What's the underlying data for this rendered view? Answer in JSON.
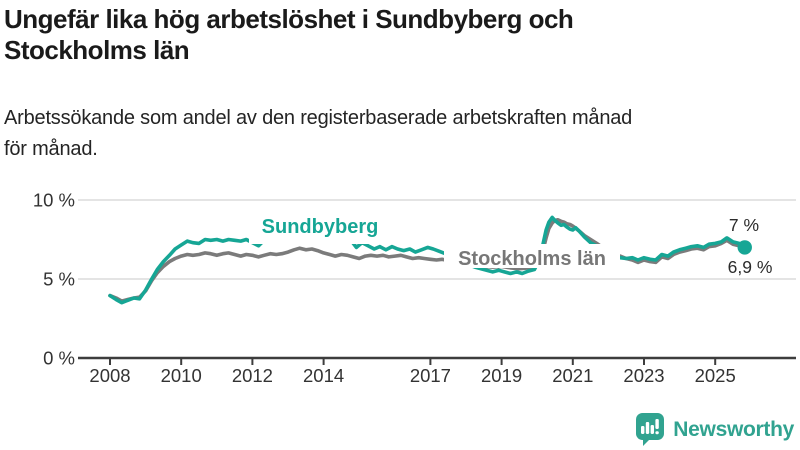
{
  "header": {
    "title_lines": [
      "Ungefär lika hög arbetslöshet i Sundbyberg och",
      "Stockholms län"
    ],
    "subtitle_lines": [
      "Arbetssökande som andel av den registerbaserade arbetskraften månad",
      "för månad."
    ]
  },
  "footer": {
    "brand": "Newsworthy",
    "logo_icon": "bar-chart-speech-bubble-icon"
  },
  "colors": {
    "accent_teal": "#16a695",
    "line_gray": "#7b7b7b",
    "grid": "#dcdcdc",
    "axis": "#3d3d3d",
    "tick_text": "#333333",
    "annotation_text": "#2b2b2b",
    "label_gray": "#777777",
    "brand_teal": "#31a390"
  },
  "chart_data": {
    "type": "line",
    "title": "",
    "xlabel": "",
    "ylabel": "",
    "grid": "horizontal",
    "legend_position": "labels-on-lines",
    "xlim": [
      2007.6,
      2026.3
    ],
    "ylim": [
      0,
      10
    ],
    "y_axis": {
      "ticks": [
        {
          "v": 0,
          "label": "0 %"
        },
        {
          "v": 5,
          "label": "5 %"
        },
        {
          "v": 10,
          "label": "10 %"
        }
      ]
    },
    "x_axis": {
      "ticks": [
        {
          "v": 2008,
          "label": "2008"
        },
        {
          "v": 2010,
          "label": "2010"
        },
        {
          "v": 2012,
          "label": "2012"
        },
        {
          "v": 2014,
          "label": "2014"
        },
        {
          "v": 2017,
          "label": "2017"
        },
        {
          "v": 2019,
          "label": "2019"
        },
        {
          "v": 2021,
          "label": "2021"
        },
        {
          "v": 2023,
          "label": "2023"
        },
        {
          "v": 2025,
          "label": "2025"
        }
      ]
    },
    "series": [
      {
        "name": "Sundbyberg",
        "color": "#16a695",
        "end_dot": true,
        "end_label": "7 %",
        "points": [
          [
            2008.0,
            3.95
          ],
          [
            2008.17,
            3.7
          ],
          [
            2008.33,
            3.5
          ],
          [
            2008.5,
            3.65
          ],
          [
            2008.67,
            3.8
          ],
          [
            2008.83,
            3.75
          ],
          [
            2009.0,
            4.3
          ],
          [
            2009.17,
            5.0
          ],
          [
            2009.33,
            5.6
          ],
          [
            2009.5,
            6.1
          ],
          [
            2009.67,
            6.5
          ],
          [
            2009.83,
            6.9
          ],
          [
            2010.0,
            7.15
          ],
          [
            2010.17,
            7.4
          ],
          [
            2010.33,
            7.3
          ],
          [
            2010.5,
            7.25
          ],
          [
            2010.67,
            7.5
          ],
          [
            2010.83,
            7.45
          ],
          [
            2011.0,
            7.5
          ],
          [
            2011.17,
            7.4
          ],
          [
            2011.33,
            7.5
          ],
          [
            2011.5,
            7.45
          ],
          [
            2011.67,
            7.4
          ],
          [
            2011.83,
            7.5
          ],
          [
            2012.0,
            7.3
          ],
          [
            2012.17,
            7.1
          ],
          [
            2012.33,
            7.45
          ],
          [
            2012.5,
            7.4
          ],
          [
            2012.75,
            7.5
          ],
          [
            2013.0,
            7.45
          ],
          [
            2013.25,
            7.5
          ],
          [
            2013.5,
            7.55
          ],
          [
            2013.75,
            7.5
          ],
          [
            2014.0,
            7.45
          ],
          [
            2014.25,
            7.5
          ],
          [
            2014.5,
            7.4
          ],
          [
            2014.75,
            7.5
          ],
          [
            2014.92,
            7.0
          ],
          [
            2015.08,
            7.3
          ],
          [
            2015.25,
            7.1
          ],
          [
            2015.42,
            6.9
          ],
          [
            2015.58,
            7.05
          ],
          [
            2015.75,
            6.85
          ],
          [
            2015.92,
            7.05
          ],
          [
            2016.08,
            6.9
          ],
          [
            2016.25,
            6.8
          ],
          [
            2016.42,
            6.9
          ],
          [
            2016.58,
            6.7
          ],
          [
            2016.75,
            6.85
          ],
          [
            2016.92,
            7.0
          ],
          [
            2017.08,
            6.9
          ],
          [
            2017.25,
            6.75
          ],
          [
            2017.42,
            6.6
          ],
          [
            2017.58,
            6.45
          ],
          [
            2017.75,
            6.25
          ],
          [
            2017.92,
            6.05
          ],
          [
            2018.08,
            5.9
          ],
          [
            2018.25,
            5.75
          ],
          [
            2018.5,
            5.6
          ],
          [
            2018.75,
            5.45
          ],
          [
            2018.92,
            5.55
          ],
          [
            2019.08,
            5.45
          ],
          [
            2019.25,
            5.35
          ],
          [
            2019.42,
            5.45
          ],
          [
            2019.58,
            5.35
          ],
          [
            2019.75,
            5.5
          ],
          [
            2019.92,
            5.6
          ],
          [
            2020.08,
            6.3
          ],
          [
            2020.17,
            7.3
          ],
          [
            2020.25,
            8.1
          ],
          [
            2020.33,
            8.6
          ],
          [
            2020.42,
            8.9
          ],
          [
            2020.5,
            8.7
          ],
          [
            2020.58,
            8.55
          ],
          [
            2020.67,
            8.4
          ],
          [
            2020.75,
            8.45
          ],
          [
            2020.83,
            8.3
          ],
          [
            2020.92,
            8.15
          ],
          [
            2021.0,
            8.1
          ],
          [
            2021.08,
            8.25
          ],
          [
            2021.17,
            8.05
          ],
          [
            2021.33,
            7.65
          ],
          [
            2021.5,
            7.3
          ],
          [
            2021.67,
            7.1
          ],
          [
            2021.83,
            6.9
          ],
          [
            2022.0,
            6.65
          ],
          [
            2022.17,
            6.45
          ],
          [
            2022.33,
            6.35
          ],
          [
            2022.5,
            6.3
          ],
          [
            2022.67,
            6.35
          ],
          [
            2022.83,
            6.2
          ],
          [
            2023.0,
            6.35
          ],
          [
            2023.17,
            6.25
          ],
          [
            2023.33,
            6.2
          ],
          [
            2023.5,
            6.55
          ],
          [
            2023.67,
            6.45
          ],
          [
            2023.83,
            6.7
          ],
          [
            2024.0,
            6.85
          ],
          [
            2024.17,
            6.95
          ],
          [
            2024.33,
            7.05
          ],
          [
            2024.5,
            7.1
          ],
          [
            2024.67,
            7.0
          ],
          [
            2024.83,
            7.2
          ],
          [
            2025.0,
            7.25
          ],
          [
            2025.17,
            7.35
          ],
          [
            2025.33,
            7.6
          ],
          [
            2025.5,
            7.35
          ],
          [
            2025.67,
            7.25
          ],
          [
            2025.83,
            7.0
          ]
        ]
      },
      {
        "name": "Stockholms län",
        "color": "#7b7b7b",
        "end_dot": false,
        "end_label": "6,9 %",
        "points": [
          [
            2008.0,
            3.95
          ],
          [
            2008.17,
            3.8
          ],
          [
            2008.33,
            3.6
          ],
          [
            2008.5,
            3.7
          ],
          [
            2008.67,
            3.8
          ],
          [
            2008.83,
            3.85
          ],
          [
            2009.0,
            4.25
          ],
          [
            2009.17,
            4.9
          ],
          [
            2009.33,
            5.4
          ],
          [
            2009.5,
            5.8
          ],
          [
            2009.67,
            6.1
          ],
          [
            2009.83,
            6.3
          ],
          [
            2010.0,
            6.45
          ],
          [
            2010.17,
            6.55
          ],
          [
            2010.33,
            6.5
          ],
          [
            2010.5,
            6.55
          ],
          [
            2010.67,
            6.65
          ],
          [
            2010.83,
            6.6
          ],
          [
            2011.0,
            6.5
          ],
          [
            2011.17,
            6.6
          ],
          [
            2011.33,
            6.65
          ],
          [
            2011.5,
            6.55
          ],
          [
            2011.67,
            6.45
          ],
          [
            2011.83,
            6.55
          ],
          [
            2012.0,
            6.5
          ],
          [
            2012.17,
            6.4
          ],
          [
            2012.33,
            6.5
          ],
          [
            2012.5,
            6.6
          ],
          [
            2012.67,
            6.55
          ],
          [
            2012.83,
            6.6
          ],
          [
            2013.0,
            6.7
          ],
          [
            2013.17,
            6.85
          ],
          [
            2013.33,
            6.95
          ],
          [
            2013.5,
            6.85
          ],
          [
            2013.67,
            6.9
          ],
          [
            2013.83,
            6.8
          ],
          [
            2014.0,
            6.65
          ],
          [
            2014.17,
            6.55
          ],
          [
            2014.33,
            6.45
          ],
          [
            2014.5,
            6.55
          ],
          [
            2014.67,
            6.5
          ],
          [
            2014.83,
            6.4
          ],
          [
            2015.0,
            6.3
          ],
          [
            2015.17,
            6.45
          ],
          [
            2015.33,
            6.5
          ],
          [
            2015.5,
            6.45
          ],
          [
            2015.67,
            6.5
          ],
          [
            2015.83,
            6.4
          ],
          [
            2016.0,
            6.45
          ],
          [
            2016.17,
            6.5
          ],
          [
            2016.33,
            6.4
          ],
          [
            2016.5,
            6.3
          ],
          [
            2016.67,
            6.35
          ],
          [
            2016.83,
            6.3
          ],
          [
            2017.0,
            6.25
          ],
          [
            2017.17,
            6.2
          ],
          [
            2017.33,
            6.25
          ],
          [
            2017.5,
            6.15
          ],
          [
            2017.67,
            6.1
          ],
          [
            2017.83,
            6.0
          ],
          [
            2018.0,
            5.95
          ],
          [
            2018.25,
            5.9
          ],
          [
            2018.5,
            5.8
          ],
          [
            2018.75,
            5.75
          ],
          [
            2019.0,
            5.8
          ],
          [
            2019.25,
            5.7
          ],
          [
            2019.5,
            5.65
          ],
          [
            2019.75,
            5.7
          ],
          [
            2019.92,
            5.8
          ],
          [
            2020.08,
            6.2
          ],
          [
            2020.17,
            6.9
          ],
          [
            2020.25,
            7.6
          ],
          [
            2020.33,
            8.2
          ],
          [
            2020.42,
            8.55
          ],
          [
            2020.5,
            8.7
          ],
          [
            2020.58,
            8.75
          ],
          [
            2020.67,
            8.65
          ],
          [
            2020.75,
            8.6
          ],
          [
            2020.83,
            8.5
          ],
          [
            2020.92,
            8.45
          ],
          [
            2021.0,
            8.35
          ],
          [
            2021.17,
            8.05
          ],
          [
            2021.33,
            7.75
          ],
          [
            2021.5,
            7.5
          ],
          [
            2021.67,
            7.25
          ],
          [
            2021.83,
            7.0
          ],
          [
            2022.0,
            6.8
          ],
          [
            2022.17,
            6.6
          ],
          [
            2022.33,
            6.45
          ],
          [
            2022.5,
            6.3
          ],
          [
            2022.67,
            6.2
          ],
          [
            2022.83,
            6.05
          ],
          [
            2023.0,
            6.2
          ],
          [
            2023.17,
            6.1
          ],
          [
            2023.33,
            6.05
          ],
          [
            2023.5,
            6.4
          ],
          [
            2023.67,
            6.3
          ],
          [
            2023.83,
            6.55
          ],
          [
            2024.0,
            6.7
          ],
          [
            2024.17,
            6.8
          ],
          [
            2024.33,
            6.9
          ],
          [
            2024.5,
            6.95
          ],
          [
            2024.67,
            6.85
          ],
          [
            2024.83,
            7.05
          ],
          [
            2025.0,
            7.1
          ],
          [
            2025.17,
            7.25
          ],
          [
            2025.33,
            7.45
          ],
          [
            2025.5,
            7.2
          ],
          [
            2025.67,
            7.1
          ],
          [
            2025.83,
            6.9
          ]
        ]
      }
    ]
  }
}
